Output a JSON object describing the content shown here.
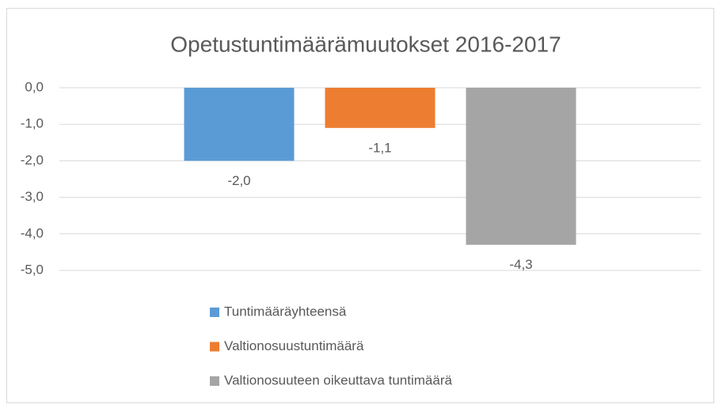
{
  "chart_data": {
    "type": "bar",
    "title": "Opetustuntimäärämuutokset 2016-2017",
    "categories": [
      null
    ],
    "series": [
      {
        "name": "Tuntimääräyhteensä",
        "color": "#5b9bd5",
        "values": [
          -2.0
        ],
        "value_labels": [
          "-2,0"
        ]
      },
      {
        "name": "Valtionosuustuntimäärä",
        "color": "#ed7d31",
        "values": [
          -1.1
        ],
        "value_labels": [
          "-1,1"
        ]
      },
      {
        "name": "Valtionosuuteen oikeuttava tuntimäärä",
        "color": "#a5a5a5",
        "values": [
          -4.3
        ],
        "value_labels": [
          "-4,3"
        ]
      }
    ],
    "ylim": [
      -5,
      0
    ],
    "yticks": [
      {
        "value": 0,
        "label": "0,0"
      },
      {
        "value": -1,
        "label": "-1,0"
      },
      {
        "value": -2,
        "label": "-2,0"
      },
      {
        "value": -3,
        "label": "-3,0"
      },
      {
        "value": -4,
        "label": "-4,0"
      },
      {
        "value": -5,
        "label": "-5,0"
      }
    ],
    "grid": true,
    "legend": "bottom"
  }
}
